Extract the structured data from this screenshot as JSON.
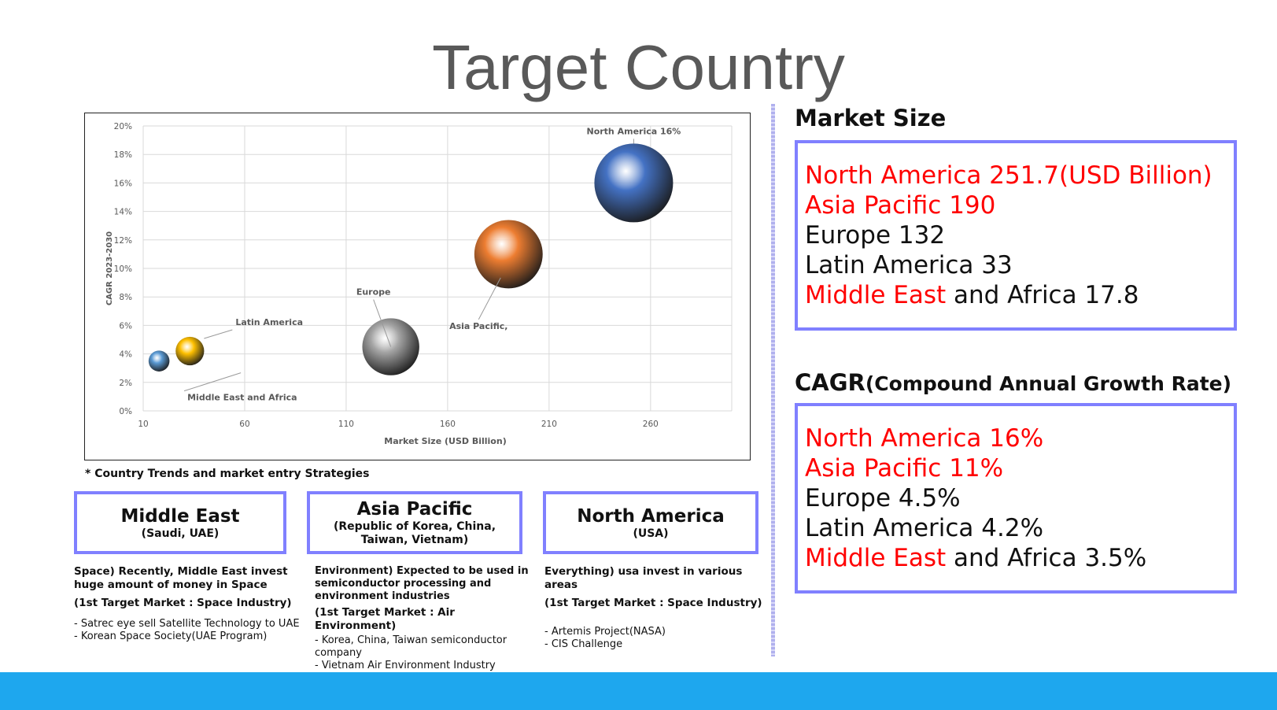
{
  "page": {
    "title": "Target Country"
  },
  "chart_data": {
    "type": "scatter",
    "subtype": "bubble",
    "xlabel": "Market Size (USD Billion)",
    "ylabel": "CAGR 2023-2030",
    "xlim": [
      10,
      300
    ],
    "ylim": [
      0,
      20
    ],
    "x_ticks": [
      "10",
      "60",
      "110",
      "160",
      "210",
      "260"
    ],
    "y_ticks": [
      "0%",
      "2%",
      "4%",
      "6%",
      "8%",
      "10%",
      "12%",
      "14%",
      "16%",
      "18%",
      "20%"
    ],
    "grid": true,
    "points": [
      {
        "label": "North America 16%",
        "x": 251.7,
        "y": 16,
        "size": 251.7,
        "color": "#4472c4"
      },
      {
        "label": "Asia Pacific,",
        "x": 190,
        "y": 11,
        "size": 190,
        "color": "#ed7d31"
      },
      {
        "label": "Europe",
        "x": 132,
        "y": 4.5,
        "size": 132,
        "color": "#a5a5a5"
      },
      {
        "label": "Latin America",
        "x": 33,
        "y": 4.2,
        "size": 33,
        "color": "#ffc000"
      },
      {
        "label": "Middle East and Africa",
        "x": 17.8,
        "y": 3.5,
        "size": 17.8,
        "color": "#5b9bd5"
      }
    ]
  },
  "note": "* Country Trends and market entry Strategies",
  "regions": [
    {
      "name": "Middle East",
      "sub": "(Saudi, UAE)",
      "headline": "Space) Recently, Middle East invest huge amount of money in Space",
      "target": "(1st Target Market : Space Industry)",
      "bullets": [
        "- Satrec eye sell Satellite Technology to UAE",
        "- Korean Space Society(UAE Program)"
      ]
    },
    {
      "name": "Asia Pacific",
      "sub": "(Republic of Korea, China, Taiwan, Vietnam)",
      "headline": "Environment) Expected to be used in semiconductor processing and environment industries",
      "target": "(1st Target Market : Air Environment)",
      "bullets": [
        "- Korea, China, Taiwan semiconductor company",
        "- Vietnam Air Environment Industry Growth"
      ]
    },
    {
      "name": "North America",
      "sub": "(USA)",
      "headline": "Everything) usa invest in various areas",
      "target": "(1st Target Market : Space Industry)",
      "bullets": [
        "- Artemis Project(NASA)",
        "- CIS Challenge"
      ]
    }
  ],
  "market_size": {
    "heading": "Market Size",
    "lines": [
      {
        "red": "North America 251.7(USD Billion)",
        "rest": ""
      },
      {
        "red": "Asia Pacific 190",
        "rest": ""
      },
      {
        "red": "",
        "rest": "Europe 132"
      },
      {
        "red": "",
        "rest": "Latin America 33"
      },
      {
        "red": "Middle East",
        "rest": " and Africa 17.8"
      }
    ]
  },
  "cagr": {
    "heading": "CAGR",
    "heading_small": "(Compound Annual Growth Rate)",
    "lines": [
      {
        "red": "North America 16%",
        "rest": ""
      },
      {
        "red": "Asia Pacific 11%",
        "rest": ""
      },
      {
        "red": "",
        "rest": "Europe 4.5%"
      },
      {
        "red": "",
        "rest": "Latin America 4.2%"
      },
      {
        "red": "Middle East",
        "rest": " and Africa 3.5%"
      }
    ]
  },
  "colors": {
    "accent_border": "#8080ff",
    "footer": "#1ea7ee",
    "highlight": "#ff0000"
  }
}
